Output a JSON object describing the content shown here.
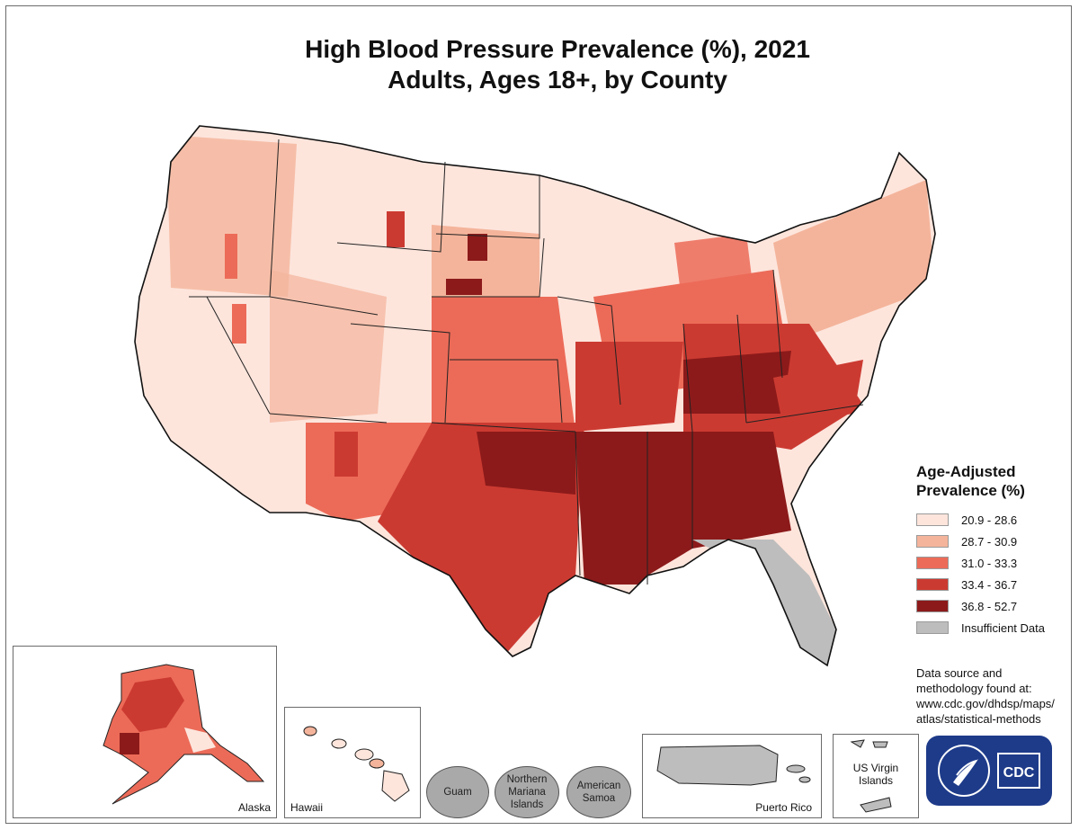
{
  "title": {
    "line1": "High Blood Pressure Prevalence (%), 2021",
    "line2": "Adults, Ages 18+, by County"
  },
  "legend": {
    "title_line1": "Age-Adjusted",
    "title_line2": "Prevalence (%)",
    "items": [
      {
        "label": "20.9 - 28.6",
        "color": "#fde5dc"
      },
      {
        "label": "28.7 - 30.9",
        "color": "#f4b49b"
      },
      {
        "label": "31.0 - 33.3",
        "color": "#ec6b58"
      },
      {
        "label": "33.4 - 36.7",
        "color": "#cb3a31"
      },
      {
        "label": "36.8 - 52.7",
        "color": "#8c1a1a"
      },
      {
        "label": "Insufficient Data",
        "color": "#bdbdbd"
      }
    ]
  },
  "source": {
    "line1": "Data source and",
    "line2": "methodology found at:",
    "line3": "www.cdc.gov/dhdsp/maps/",
    "line4": "atlas/statistical-methods"
  },
  "insets": {
    "alaska": "Alaska",
    "hawaii": "Hawaii",
    "puerto_rico": "Puerto Rico",
    "usvi_line1": "US Virgin",
    "usvi_line2": "Islands"
  },
  "territories": {
    "guam": "Guam",
    "nmi_line1": "Northern",
    "nmi_line2": "Mariana",
    "nmi_line3": "Islands",
    "samoa_line1": "American",
    "samoa_line2": "Samoa"
  },
  "logo": {
    "text": "CDC"
  }
}
